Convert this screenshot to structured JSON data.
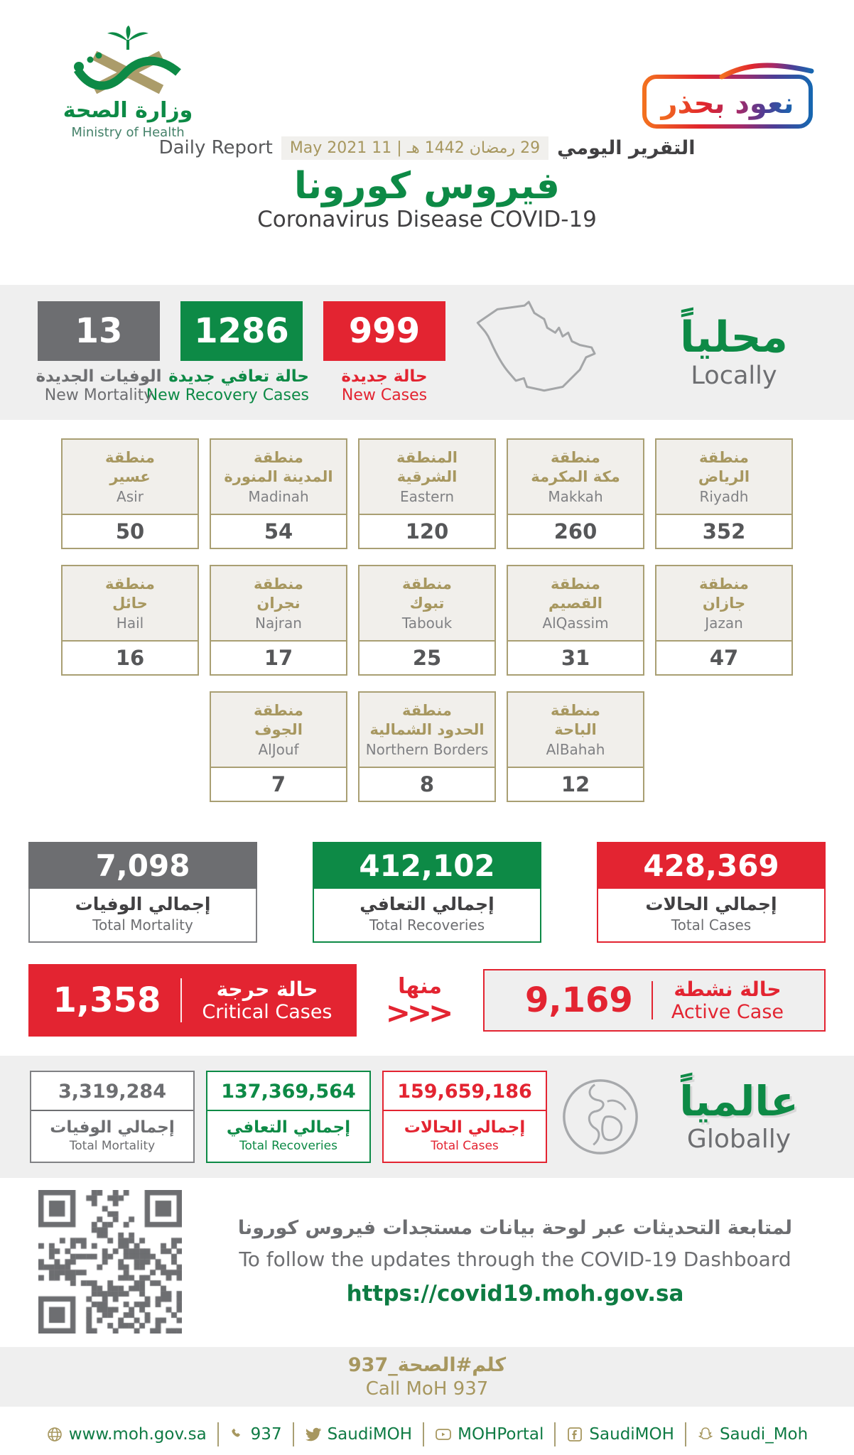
{
  "brand": {
    "logo_ar": "وزارة الصحة",
    "logo_en": "Ministry of Health",
    "badge_ar": "نعود بحذر"
  },
  "report": {
    "title_ar": "التقرير اليومي",
    "title_en": "Daily Report",
    "date_hijri": "29 رمضان 1442 هـ",
    "separator": "|",
    "date_greg": "11 May 2021"
  },
  "title": {
    "ar": "فيروس كورونا",
    "en": "Coronavirus Disease COVID-19"
  },
  "locally": {
    "label_ar": "محلياً",
    "label_en": "Locally",
    "new_cases": {
      "value": "999",
      "ar": "حالة جديدة",
      "en": "New Cases"
    },
    "new_recoveries": {
      "value": "1286",
      "ar": "حالة تعافي جديدة",
      "en": "New Recovery Cases"
    },
    "new_mortality": {
      "value": "13",
      "ar": "الوفيات الجديدة",
      "en": "New Mortality"
    }
  },
  "regions": {
    "row1": [
      {
        "ar1": "منطقة",
        "ar2": "الرياض",
        "en": "Riyadh",
        "value": "352"
      },
      {
        "ar1": "منطقة",
        "ar2": "مكة المكرمة",
        "en": "Makkah",
        "value": "260"
      },
      {
        "ar1": "المنطقة",
        "ar2": "الشرقية",
        "en": "Eastern",
        "value": "120"
      },
      {
        "ar1": "منطقة",
        "ar2": "المدينة المنورة",
        "en": "Madinah",
        "value": "54"
      },
      {
        "ar1": "منطقة",
        "ar2": "عسير",
        "en": "Asir",
        "value": "50"
      }
    ],
    "row2": [
      {
        "ar1": "منطقة",
        "ar2": "جازان",
        "en": "Jazan",
        "value": "47"
      },
      {
        "ar1": "منطقة",
        "ar2": "القصيم",
        "en": "AlQassim",
        "value": "31"
      },
      {
        "ar1": "منطقة",
        "ar2": "تبوك",
        "en": "Tabouk",
        "value": "25"
      },
      {
        "ar1": "منطقة",
        "ar2": "نجران",
        "en": "Najran",
        "value": "17"
      },
      {
        "ar1": "منطقة",
        "ar2": "حائل",
        "en": "Hail",
        "value": "16"
      }
    ],
    "row3": [
      {
        "ar1": "منطقة",
        "ar2": "الباحة",
        "en": "AlBahah",
        "value": "12"
      },
      {
        "ar1": "منطقة",
        "ar2": "الحدود الشمالية",
        "en": "Northern Borders",
        "value": "8"
      },
      {
        "ar1": "منطقة",
        "ar2": "الجوف",
        "en": "AlJouf",
        "value": "7"
      }
    ]
  },
  "totals": {
    "cases": {
      "value": "428,369",
      "ar": "إجمالي الحالات",
      "en": "Total Cases"
    },
    "recoveries": {
      "value": "412,102",
      "ar": "إجمالي التعافي",
      "en": "Total Recoveries"
    },
    "mortality": {
      "value": "7,098",
      "ar": "إجمالي الوفيات",
      "en": "Total Mortality"
    }
  },
  "active_critical": {
    "active": {
      "value": "9,169",
      "ar": "حالة نشطة",
      "en": "Active Case"
    },
    "of_which_ar": "منها",
    "chevrons": "<<<",
    "critical": {
      "value": "1,358",
      "ar": "حالة حرجة",
      "en": "Critical Cases"
    }
  },
  "globally": {
    "label_ar": "عالمياً",
    "label_en": "Globally",
    "cases": {
      "value": "159,659,186",
      "ar": "إجمالي الحالات",
      "en": "Total Cases"
    },
    "recoveries": {
      "value": "137,369,564",
      "ar": "إجمالي التعافي",
      "en": "Total Recoveries"
    },
    "mortality": {
      "value": "3,319,284",
      "ar": "إجمالي الوفيات",
      "en": "Total Mortality"
    }
  },
  "dashboard": {
    "ar": "لمتابعة التحديثات عبر لوحة بيانات مستجدات فيروس كورونا",
    "en": "To follow the updates through the COVID-19 Dashboard",
    "url": "https://covid19.moh.gov.sa"
  },
  "call": {
    "ar": "كلم#الصحة_937",
    "en": "Call MoH 937"
  },
  "footer": {
    "items": [
      {
        "icon": "globe-icon",
        "label": "www.moh.gov.sa"
      },
      {
        "icon": "phone-icon",
        "label": "937"
      },
      {
        "icon": "twitter-icon",
        "label": "SaudiMOH"
      },
      {
        "icon": "youtube-icon",
        "label": "MOHPortal"
      },
      {
        "icon": "facebook-icon",
        "label": "SaudiMOH"
      },
      {
        "icon": "snapchat-icon",
        "label": "Saudi_Moh"
      }
    ]
  },
  "colors": {
    "green": "#0d8a46",
    "red": "#e32431",
    "gray": "#6d6e71",
    "gold": "#a7975f",
    "band": "#efefef"
  }
}
